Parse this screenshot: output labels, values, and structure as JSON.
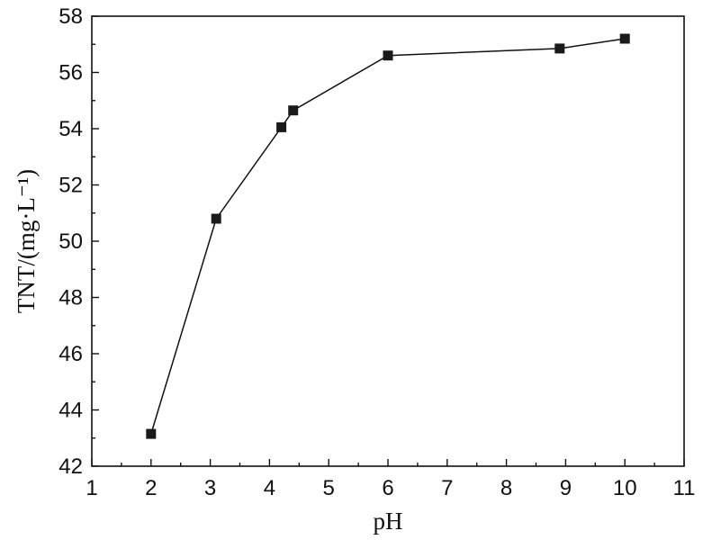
{
  "chart_data": {
    "type": "line",
    "title": "",
    "xlabel": "pH",
    "ylabel": "TNT/(mg·L⁻¹)",
    "xlim": [
      1,
      11
    ],
    "ylim": [
      42,
      58
    ],
    "xticks": [
      "1",
      "2",
      "3",
      "4",
      "5",
      "6",
      "7",
      "8",
      "9",
      "10",
      "11"
    ],
    "yticks": [
      "42",
      "44",
      "46",
      "48",
      "50",
      "52",
      "54",
      "56",
      "58"
    ],
    "grid": false,
    "legend": "none",
    "marker": "square",
    "color": "#1a1a1a",
    "series": [
      {
        "x": [
          2,
          3.1,
          4.2,
          4.4,
          6,
          8.9,
          10
        ],
        "y": [
          43.15,
          50.8,
          54.05,
          54.65,
          56.6,
          56.85,
          57.2
        ]
      }
    ]
  }
}
